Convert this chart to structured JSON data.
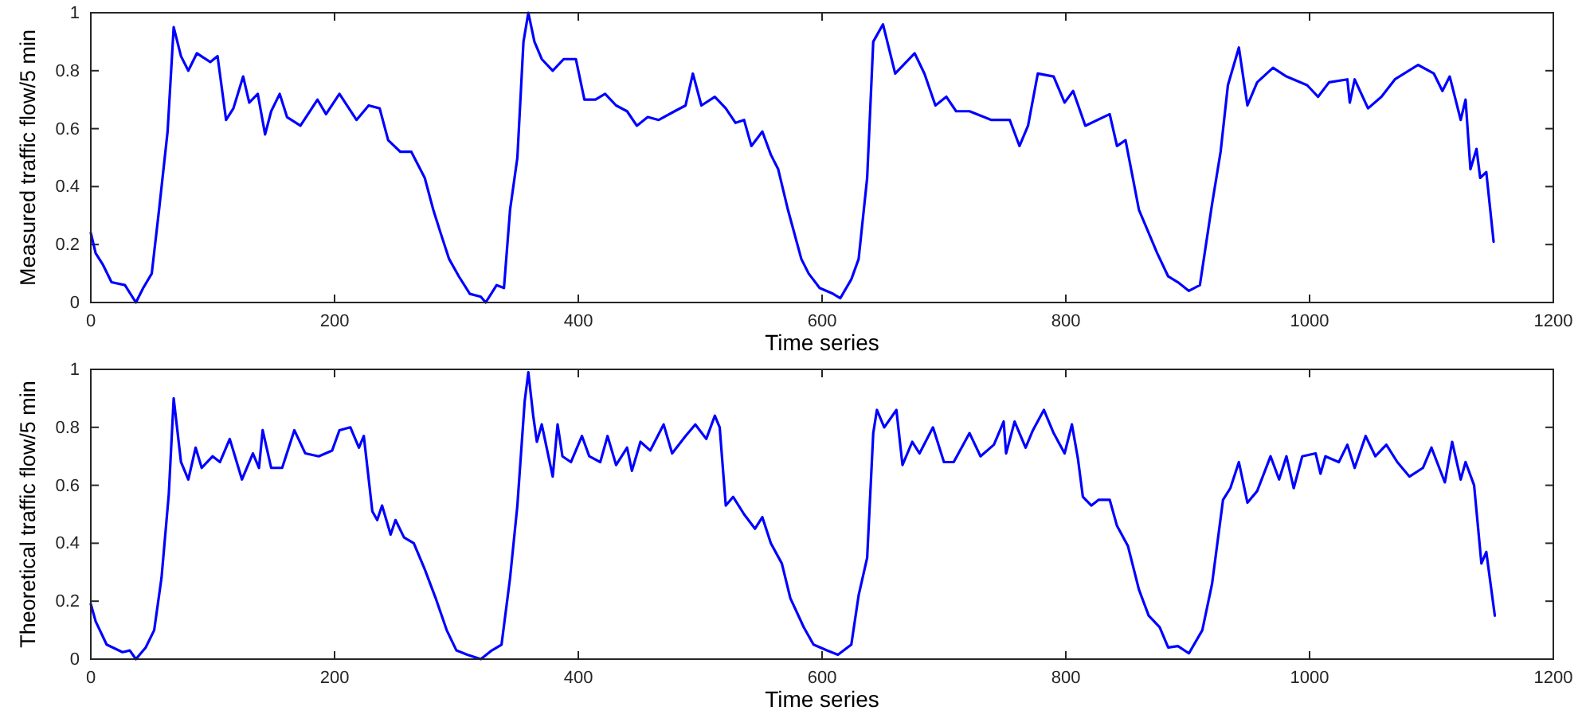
{
  "chart_data": [
    {
      "type": "line",
      "xlabel": "Time series",
      "ylabel": "Measured traffic flow/5 min",
      "xlim": [
        0,
        1200
      ],
      "xticks": [
        0,
        200,
        400,
        600,
        800,
        1000,
        1200
      ],
      "ylim": [
        0,
        1
      ],
      "yticks": [
        0,
        0.2,
        0.4,
        0.6,
        0.8,
        1
      ],
      "grid": false,
      "marker": "none",
      "line_style": "solid",
      "color": "#0000ff",
      "x": [
        0,
        4,
        10,
        17,
        28,
        37,
        43,
        50,
        56,
        63,
        68,
        74,
        80,
        87,
        98,
        104,
        111,
        117,
        125,
        130,
        137,
        143,
        148,
        155,
        161,
        172,
        186,
        193,
        204,
        218,
        228,
        237,
        244,
        254,
        263,
        274,
        281,
        287,
        294,
        302,
        311,
        320,
        324,
        333,
        339,
        344,
        350,
        355,
        359,
        364,
        370,
        379,
        388,
        398,
        405,
        414,
        422,
        431,
        440,
        448,
        457,
        466,
        479,
        488,
        494,
        501,
        512,
        521,
        529,
        536,
        542,
        551,
        558,
        564,
        572,
        583,
        589,
        598,
        609,
        615,
        624,
        630,
        637,
        642,
        650,
        660,
        676,
        684,
        693,
        702,
        710,
        721,
        739,
        754,
        762,
        769,
        777,
        790,
        799,
        806,
        816,
        836,
        842,
        849,
        860,
        866,
        875,
        884,
        892,
        901,
        910,
        920,
        927,
        933,
        942,
        949,
        957,
        970,
        981,
        998,
        1007,
        1016,
        1031,
        1033,
        1037,
        1048,
        1059,
        1070,
        1089,
        1102,
        1109,
        1115,
        1124,
        1128,
        1132,
        1137,
        1140,
        1145,
        1151
      ],
      "values": [
        0.24,
        0.17,
        0.13,
        0.07,
        0.06,
        0,
        0.05,
        0.1,
        0.32,
        0.59,
        0.95,
        0.85,
        0.8,
        0.86,
        0.83,
        0.85,
        0.63,
        0.67,
        0.78,
        0.69,
        0.72,
        0.58,
        0.66,
        0.72,
        0.64,
        0.61,
        0.7,
        0.65,
        0.72,
        0.63,
        0.68,
        0.67,
        0.56,
        0.52,
        0.52,
        0.43,
        0.32,
        0.24,
        0.15,
        0.09,
        0.03,
        0.02,
        0,
        0.06,
        0.05,
        0.32,
        0.5,
        0.9,
        1,
        0.9,
        0.84,
        0.8,
        0.84,
        0.84,
        0.7,
        0.7,
        0.72,
        0.68,
        0.66,
        0.61,
        0.64,
        0.63,
        0.66,
        0.68,
        0.79,
        0.68,
        0.71,
        0.67,
        0.62,
        0.63,
        0.54,
        0.59,
        0.51,
        0.46,
        0.32,
        0.15,
        0.1,
        0.05,
        0.03,
        0.015,
        0.08,
        0.15,
        0.43,
        0.9,
        0.96,
        0.79,
        0.86,
        0.79,
        0.68,
        0.71,
        0.66,
        0.66,
        0.63,
        0.63,
        0.54,
        0.61,
        0.79,
        0.78,
        0.69,
        0.73,
        0.61,
        0.65,
        0.54,
        0.56,
        0.32,
        0.26,
        0.17,
        0.09,
        0.07,
        0.04,
        0.06,
        0.34,
        0.52,
        0.75,
        0.88,
        0.68,
        0.76,
        0.81,
        0.78,
        0.75,
        0.71,
        0.76,
        0.77,
        0.69,
        0.77,
        0.67,
        0.71,
        0.77,
        0.82,
        0.79,
        0.73,
        0.78,
        0.63,
        0.7,
        0.46,
        0.53,
        0.43,
        0.45,
        0.21
      ]
    },
    {
      "type": "line",
      "xlabel": "Time series",
      "ylabel": "Theoretical traffic flow/5 min",
      "xlim": [
        0,
        1200
      ],
      "xticks": [
        0,
        200,
        400,
        600,
        800,
        1000,
        1200
      ],
      "ylim": [
        0,
        1
      ],
      "yticks": [
        0,
        0.2,
        0.4,
        0.6,
        0.8,
        1
      ],
      "grid": false,
      "marker": "none",
      "line_style": "solid",
      "color": "#0000ff",
      "x": [
        0,
        4,
        13,
        26,
        32,
        37,
        45,
        52,
        58,
        64,
        68,
        74,
        80,
        86,
        91,
        100,
        106,
        114,
        124,
        133,
        138,
        141,
        148,
        157,
        167,
        176,
        187,
        198,
        204,
        213,
        220,
        224,
        231,
        235,
        239,
        246,
        250,
        257,
        265,
        274,
        283,
        292,
        300,
        309,
        320,
        329,
        337,
        344,
        350,
        356,
        359,
        363,
        366,
        370,
        379,
        383,
        387,
        394,
        403,
        409,
        418,
        424,
        431,
        440,
        444,
        451,
        459,
        470,
        477,
        488,
        496,
        505,
        512,
        516,
        521,
        527,
        536,
        545,
        551,
        558,
        567,
        574,
        585,
        593,
        604,
        613,
        624,
        630,
        637,
        642,
        645,
        651,
        661,
        666,
        674,
        680,
        691,
        700,
        708,
        721,
        730,
        741,
        749,
        751,
        758,
        767,
        773,
        782,
        790,
        799,
        805,
        810,
        814,
        821,
        827,
        836,
        842,
        851,
        860,
        868,
        877,
        884,
        892,
        901,
        912,
        920,
        929,
        935,
        942,
        949,
        957,
        968,
        975,
        981,
        987,
        994,
        1005,
        1009,
        1013,
        1024,
        1031,
        1037,
        1046,
        1054,
        1063,
        1072,
        1082,
        1093,
        1100,
        1111,
        1117,
        1124,
        1128,
        1135,
        1141,
        1145,
        1152
      ],
      "values": [
        0.19,
        0.13,
        0.05,
        0.024,
        0.03,
        0,
        0.04,
        0.1,
        0.28,
        0.57,
        0.9,
        0.68,
        0.62,
        0.73,
        0.66,
        0.7,
        0.68,
        0.76,
        0.62,
        0.71,
        0.66,
        0.79,
        0.66,
        0.66,
        0.79,
        0.71,
        0.7,
        0.72,
        0.79,
        0.8,
        0.73,
        0.77,
        0.51,
        0.48,
        0.53,
        0.43,
        0.48,
        0.42,
        0.4,
        0.31,
        0.21,
        0.1,
        0.03,
        0.015,
        0,
        0.03,
        0.05,
        0.28,
        0.53,
        0.89,
        0.99,
        0.84,
        0.75,
        0.81,
        0.63,
        0.81,
        0.7,
        0.68,
        0.77,
        0.7,
        0.68,
        0.77,
        0.67,
        0.73,
        0.65,
        0.75,
        0.72,
        0.81,
        0.71,
        0.77,
        0.81,
        0.76,
        0.84,
        0.8,
        0.53,
        0.56,
        0.5,
        0.45,
        0.49,
        0.4,
        0.33,
        0.21,
        0.11,
        0.05,
        0.03,
        0.015,
        0.05,
        0.22,
        0.35,
        0.78,
        0.86,
        0.8,
        0.86,
        0.67,
        0.75,
        0.71,
        0.8,
        0.68,
        0.68,
        0.78,
        0.7,
        0.74,
        0.82,
        0.71,
        0.82,
        0.73,
        0.79,
        0.86,
        0.78,
        0.71,
        0.81,
        0.69,
        0.56,
        0.53,
        0.55,
        0.55,
        0.46,
        0.39,
        0.24,
        0.15,
        0.11,
        0.04,
        0.045,
        0.02,
        0.1,
        0.26,
        0.55,
        0.59,
        0.68,
        0.54,
        0.58,
        0.7,
        0.62,
        0.7,
        0.59,
        0.7,
        0.71,
        0.64,
        0.7,
        0.68,
        0.74,
        0.66,
        0.77,
        0.7,
        0.74,
        0.68,
        0.63,
        0.66,
        0.73,
        0.61,
        0.75,
        0.62,
        0.68,
        0.6,
        0.33,
        0.37,
        0.15
      ]
    }
  ]
}
